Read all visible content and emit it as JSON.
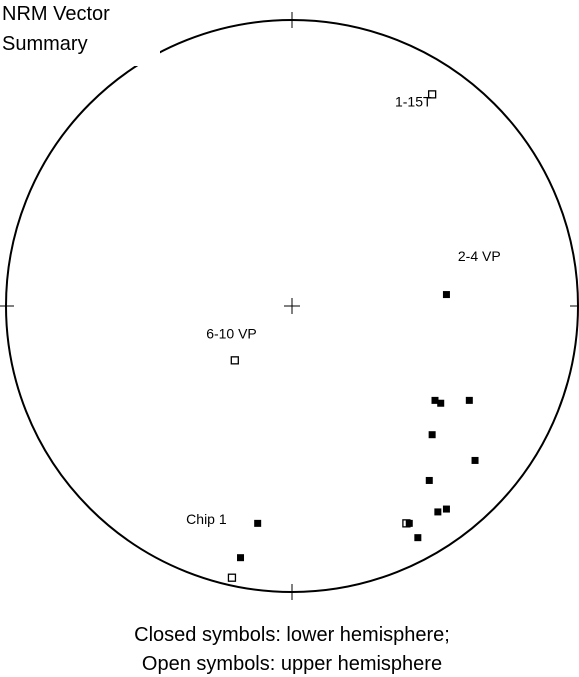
{
  "chart_data": {
    "type": "stereonet",
    "title": [
      "NRM Vector",
      "Summary"
    ],
    "caption": [
      "Closed symbols: lower hemisphere;",
      "Open symbols: upper hemisphere"
    ],
    "xlim": [
      -1,
      1
    ],
    "ylim": [
      -1,
      1
    ],
    "color": "#000000",
    "points": {
      "x": [
        0.49,
        -0.2,
        -0.21,
        0.4,
        0.54,
        0.5,
        0.52,
        0.62,
        0.49,
        0.64,
        0.48,
        0.51,
        0.54,
        0.41,
        0.44,
        -0.12,
        -0.18
      ],
      "y": [
        0.74,
        -0.19,
        -0.95,
        -0.76,
        0.04,
        -0.33,
        -0.34,
        -0.33,
        -0.45,
        -0.54,
        -0.61,
        -0.72,
        -0.71,
        -0.76,
        -0.81,
        -0.76,
        -0.88
      ],
      "open": [
        true,
        true,
        true,
        true,
        false,
        false,
        false,
        false,
        false,
        false,
        false,
        false,
        false,
        false,
        false,
        false,
        false
      ]
    },
    "annotations": [
      {
        "text": "1-15T",
        "x": 0.36,
        "y": 0.71
      },
      {
        "text": "2-4 VP",
        "x": 0.58,
        "y": 0.17
      },
      {
        "text": "6-10 VP",
        "x": -0.3,
        "y": -0.1
      },
      {
        "text": "Chip 1",
        "x": -0.37,
        "y": -0.75
      }
    ]
  }
}
